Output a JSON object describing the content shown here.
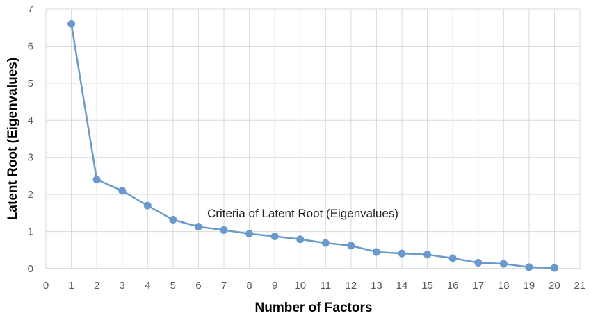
{
  "chart_data": {
    "type": "line",
    "xlabel": "Number of Factors",
    "ylabel": "Latent Root (Eigenvalues)",
    "annotation": "Criteria of Latent Root (Eigenvalues)",
    "xlim": [
      0,
      21
    ],
    "ylim": [
      0,
      7
    ],
    "xticks": [
      0,
      1,
      2,
      3,
      4,
      5,
      6,
      7,
      8,
      9,
      10,
      11,
      12,
      13,
      14,
      15,
      16,
      17,
      18,
      19,
      20,
      21
    ],
    "yticks": [
      0,
      1,
      2,
      3,
      4,
      5,
      6,
      7
    ],
    "grid": true,
    "legend": "none",
    "series": [
      {
        "color": "#6a9acb",
        "x": [
          1,
          2,
          3,
          4,
          5,
          6,
          7,
          8,
          9,
          10,
          11,
          12,
          13,
          14,
          15,
          16,
          17,
          18,
          19,
          20
        ],
        "y": [
          6.6,
          2.4,
          2.1,
          1.7,
          1.32,
          1.13,
          1.04,
          0.94,
          0.87,
          0.79,
          0.69,
          0.62,
          0.45,
          0.41,
          0.38,
          0.28,
          0.16,
          0.13,
          0.04,
          0.02
        ]
      }
    ]
  }
}
